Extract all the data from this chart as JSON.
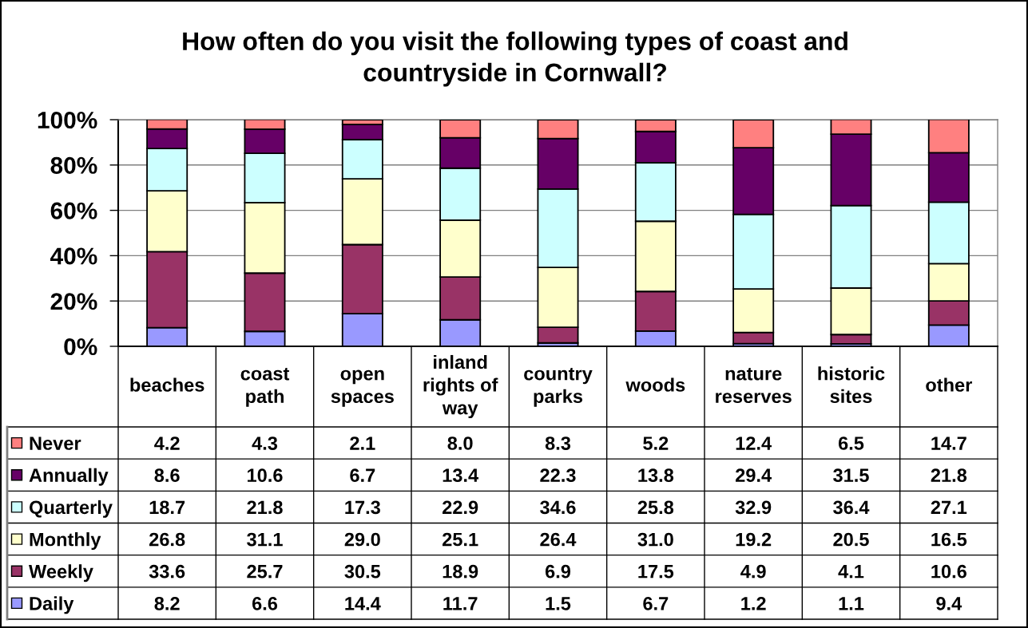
{
  "chart_data": {
    "type": "bar",
    "title": "How often do you visit the following types of coast and countryside in Cornwall?",
    "categories": [
      "beaches",
      "coast path",
      "open spaces",
      "inland rights of way",
      "country parks",
      "woods",
      "nature reserves",
      "historic sites",
      "other"
    ],
    "stacked": true,
    "series": [
      {
        "name": "Daily",
        "color": "#9999ff",
        "values": [
          8.2,
          6.6,
          14.4,
          11.7,
          1.5,
          6.7,
          1.2,
          1.1,
          9.4
        ],
        "value_labels": [
          "8.2",
          "6.6",
          "14.4",
          "11.7",
          "1.5",
          "6.7",
          "1.2",
          "1.1",
          "9.4"
        ]
      },
      {
        "name": "Weekly",
        "color": "#993366",
        "values": [
          33.6,
          25.7,
          30.5,
          18.9,
          6.9,
          17.5,
          4.9,
          4.1,
          10.6
        ],
        "value_labels": [
          "33.6",
          "25.7",
          "30.5",
          "18.9",
          "6.9",
          "17.5",
          "4.9",
          "4.1",
          "10.6"
        ]
      },
      {
        "name": "Monthly",
        "color": "#ffffcc",
        "values": [
          26.8,
          31.1,
          29.0,
          25.1,
          26.4,
          31.0,
          19.2,
          20.5,
          16.5
        ],
        "value_labels": [
          "26.8",
          "31.1",
          "29.0",
          "25.1",
          "26.4",
          "31.0",
          "19.2",
          "20.5",
          "16.5"
        ]
      },
      {
        "name": "Quarterly",
        "color": "#ccffff",
        "values": [
          18.7,
          21.8,
          17.3,
          22.9,
          34.6,
          25.8,
          32.9,
          36.4,
          27.1
        ],
        "value_labels": [
          "18.7",
          "21.8",
          "17.3",
          "22.9",
          "34.6",
          "25.8",
          "32.9",
          "36.4",
          "27.1"
        ]
      },
      {
        "name": "Annually",
        "color": "#660066",
        "values": [
          8.6,
          10.6,
          6.7,
          13.4,
          22.3,
          13.8,
          29.4,
          31.5,
          21.8
        ],
        "value_labels": [
          "8.6",
          "10.6",
          "6.7",
          "13.4",
          "22.3",
          "13.8",
          "29.4",
          "31.5",
          "21.8"
        ]
      },
      {
        "name": "Never",
        "color": "#ff8080",
        "values": [
          4.2,
          4.3,
          2.1,
          8.0,
          8.3,
          5.2,
          12.4,
          6.5,
          14.7
        ],
        "value_labels": [
          "4.2",
          "4.3",
          "2.1",
          "8.0",
          "8.3",
          "5.2",
          "12.4",
          "6.5",
          "14.7"
        ]
      }
    ],
    "ylim": [
      0,
      100
    ],
    "yticks": [
      {
        "value": 0,
        "label": "0%"
      },
      {
        "value": 20,
        "label": "20%"
      },
      {
        "value": 40,
        "label": "40%"
      },
      {
        "value": 60,
        "label": "60%"
      },
      {
        "value": 80,
        "label": "80%"
      },
      {
        "value": 100,
        "label": "100%"
      }
    ],
    "grid": "y",
    "legend": "bottom"
  }
}
